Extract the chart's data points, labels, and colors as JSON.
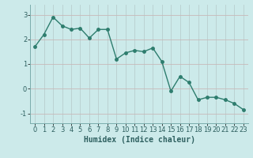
{
  "x": [
    0,
    1,
    2,
    3,
    4,
    5,
    6,
    7,
    8,
    9,
    10,
    11,
    12,
    13,
    14,
    15,
    16,
    17,
    18,
    19,
    20,
    21,
    22,
    23
  ],
  "y": [
    1.7,
    2.2,
    2.9,
    2.55,
    2.4,
    2.45,
    2.05,
    2.4,
    2.4,
    1.2,
    1.45,
    1.55,
    1.5,
    1.65,
    1.1,
    -0.1,
    0.5,
    0.25,
    -0.45,
    -0.35,
    -0.35,
    -0.45,
    -0.6,
    -0.85
  ],
  "line_color": "#2e7d6e",
  "marker_color": "#2e7d6e",
  "bg_color": "#cceaea",
  "grid_color_h": "#c8b8b8",
  "grid_color_v": "#b8cece",
  "xlabel": "Humidex (Indice chaleur)",
  "xlim": [
    -0.5,
    23.5
  ],
  "ylim": [
    -1.4,
    3.4
  ],
  "yticks": [
    -1,
    0,
    1,
    2,
    3
  ],
  "xticks": [
    0,
    1,
    2,
    3,
    4,
    5,
    6,
    7,
    8,
    9,
    10,
    11,
    12,
    13,
    14,
    15,
    16,
    17,
    18,
    19,
    20,
    21,
    22,
    23
  ],
  "label_fontsize": 7,
  "tick_fontsize": 6,
  "marker_size": 2.5,
  "line_width": 1.0
}
